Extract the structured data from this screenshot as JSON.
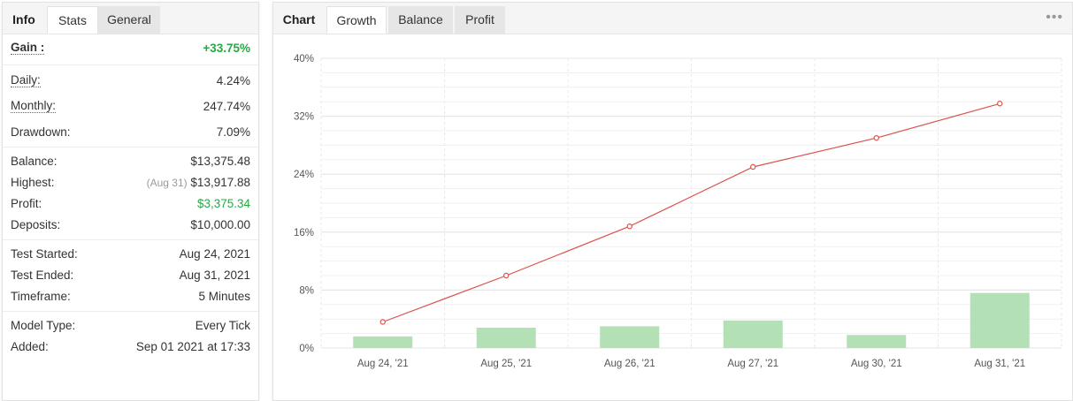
{
  "left_tabs": [
    {
      "label": "Info",
      "state": "plain"
    },
    {
      "label": "Stats",
      "state": "active"
    },
    {
      "label": "General",
      "state": "inactive"
    }
  ],
  "stats": {
    "gain": {
      "label": "Gain :",
      "value": "+33.75%"
    },
    "daily": {
      "label": "Daily:",
      "value": "4.24%"
    },
    "monthly": {
      "label": "Monthly:",
      "value": "247.74%"
    },
    "drawdown": {
      "label": "Drawdown:",
      "value": "7.09%"
    },
    "balance": {
      "label": "Balance:",
      "value": "$13,375.48"
    },
    "highest": {
      "label": "Highest:",
      "note": "(Aug 31)",
      "value": "$13,917.88"
    },
    "profit": {
      "label": "Profit:",
      "value": "$3,375.34"
    },
    "deposits": {
      "label": "Deposits:",
      "value": "$10,000.00"
    },
    "test_started": {
      "label": "Test Started:",
      "value": "Aug 24, 2021"
    },
    "test_ended": {
      "label": "Test Ended:",
      "value": "Aug 31, 2021"
    },
    "timeframe": {
      "label": "Timeframe:",
      "value": "5 Minutes"
    },
    "model_type": {
      "label": "Model Type:",
      "value": "Every Tick"
    },
    "added": {
      "label": "Added:",
      "value": "Sep 01 2021 at 17:33"
    }
  },
  "right_tabs": [
    {
      "label": "Chart",
      "state": "plain"
    },
    {
      "label": "Growth",
      "state": "active"
    },
    {
      "label": "Balance",
      "state": "inactive"
    },
    {
      "label": "Profit",
      "state": "inactive"
    }
  ],
  "more_icon": "•••",
  "colors": {
    "line": "#d9534f",
    "bar": "#b3e0b5",
    "gain": "#28a745"
  },
  "chart_data": {
    "type": "bar+line",
    "categories": [
      "Aug 24, '21",
      "Aug 25, '21",
      "Aug 26, '21",
      "Aug 27, '21",
      "Aug 30, '21",
      "Aug 31, '21"
    ],
    "y_ticks": [
      "0%",
      "8%",
      "16%",
      "24%",
      "32%",
      "40%"
    ],
    "ylim": [
      0,
      40
    ],
    "grid": true,
    "series": [
      {
        "type": "line",
        "values": [
          3.6,
          10,
          16.8,
          25,
          29,
          33.75
        ]
      },
      {
        "type": "bar",
        "values": [
          1.6,
          2.8,
          3.0,
          3.8,
          1.8,
          7.6
        ]
      }
    ]
  }
}
